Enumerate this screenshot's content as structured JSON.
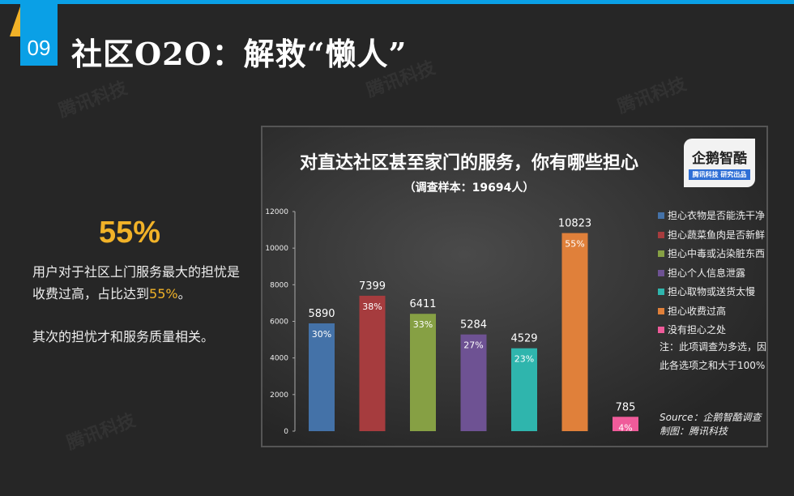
{
  "header": {
    "number": "09",
    "title": "社区O2O：解救“懒人”"
  },
  "watermark": "腾讯科技",
  "left": {
    "big_stat": "55%",
    "desc_prefix": "用户对于社区上门服务最大的担忧是收费过高，占比达到",
    "desc_highlight": "55%",
    "desc_suffix": "。",
    "desc2": "其次的担忧才和服务质量相关。"
  },
  "logo": {
    "name": "企鹅智酷",
    "tag": "腾讯科技  研究出品"
  },
  "note": "注：此项调查为多选，因此各选项之和大于100%",
  "source": "Source：企鹅智酷调查",
  "credit": "制图：腾讯科技",
  "chart_data": {
    "type": "bar",
    "title": "对直达社区甚至家门的服务，你有哪些担心",
    "subtitle": "（调查样本：19694人）",
    "categories": [
      "担心衣物是否能洗干净",
      "担心蔬菜鱼肉是否新鲜",
      "担心中毒或沾染脏东西",
      "担心个人信息泄露",
      "担心取物或送货太慢",
      "担心收费过高",
      "没有担心之处"
    ],
    "values": [
      5890,
      7399,
      6411,
      5284,
      4529,
      10823,
      785
    ],
    "percent_labels": [
      "30%",
      "38%",
      "33%",
      "27%",
      "23%",
      "55%",
      "4%"
    ],
    "colors": [
      "#4472a8",
      "#a63c3e",
      "#86a044",
      "#6e5293",
      "#2fb5ad",
      "#e0803a",
      "#ef5b9a"
    ],
    "ylim": [
      0,
      12000
    ],
    "yticks": [
      0,
      2000,
      4000,
      6000,
      8000,
      10000,
      12000
    ],
    "grid": false,
    "legend": "right"
  }
}
